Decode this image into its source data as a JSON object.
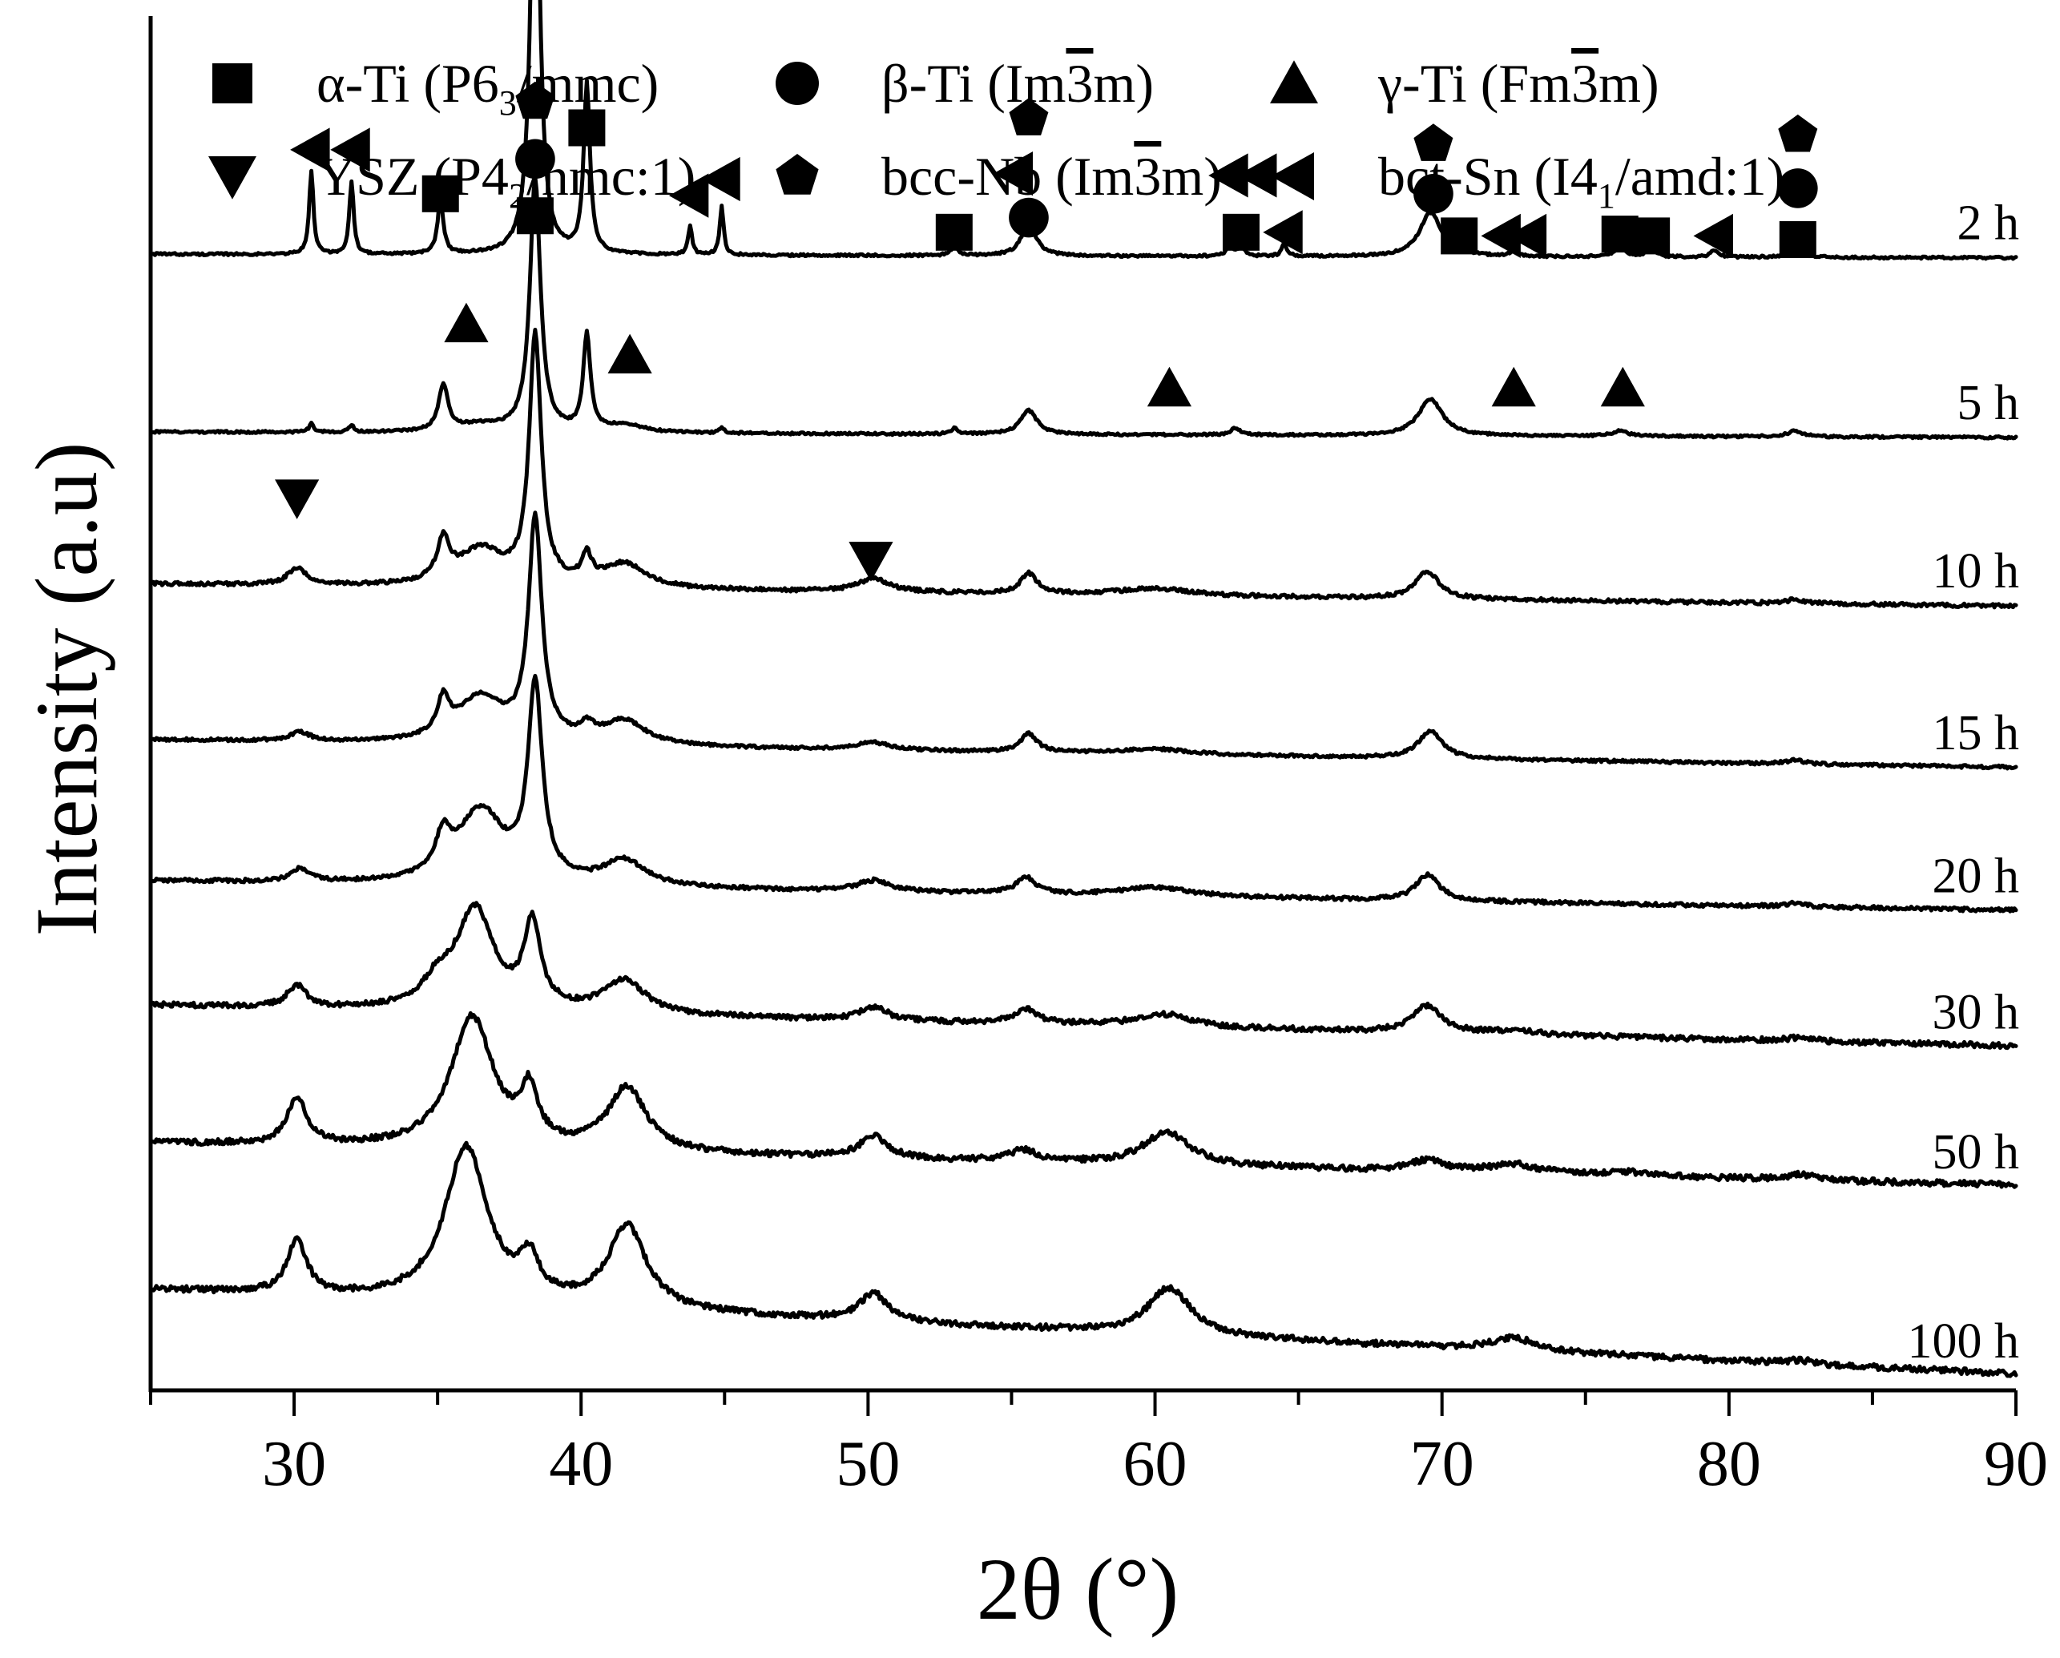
{
  "chart_data": {
    "type": "line",
    "title": "",
    "xlabel": "2θ (°)",
    "ylabel": "Intensity (a.u)",
    "xlim": [
      25,
      90
    ],
    "ylim": [
      0,
      7.5
    ],
    "x_ticks": [
      30,
      40,
      50,
      60,
      70,
      80,
      90
    ],
    "grid": false,
    "legend_position": "top",
    "legend": [
      {
        "symbol": "square",
        "phase": "α-Ti",
        "open": " (P6",
        "sub": "3",
        "close": "/mmc)"
      },
      {
        "symbol": "circle",
        "phase": "β-Ti",
        "open": "  (Im",
        "over": "3",
        "close": "m)"
      },
      {
        "symbol": "triangle-up",
        "phase": "γ-Ti",
        "open": " (Fm",
        "over": "3",
        "close": "m)"
      },
      {
        "symbol": "triangle-down",
        "phase": "YSZ",
        "open": " (P4",
        "sub": "2",
        "close": "/nmc:1)"
      },
      {
        "symbol": "pentagon",
        "phase": "bcc-Nb",
        "open": " (Im",
        "over": "3",
        "close": "m)"
      },
      {
        "symbol": "triangle-left",
        "phase": "bct-Sn",
        "open": " (I4",
        "sub": "1",
        "close": "/amd:1)"
      }
    ],
    "series": [
      {
        "name": "2 h",
        "offset": 6.2,
        "tail": -0.02,
        "noise": 0.006,
        "bumps": [
          [
            30.6,
            0.45,
            0.09
          ],
          [
            32.0,
            0.4,
            0.09
          ],
          [
            35.1,
            0.3,
            0.12
          ],
          [
            38.4,
            2.65,
            0.18
          ],
          [
            40.2,
            0.92,
            0.13
          ],
          [
            43.8,
            0.16,
            0.08
          ],
          [
            44.9,
            0.27,
            0.08
          ],
          [
            53.0,
            0.05,
            0.15
          ],
          [
            55.6,
            0.18,
            0.3
          ],
          [
            62.6,
            0.07,
            0.12
          ],
          [
            63.0,
            0.06,
            0.12
          ],
          [
            64.5,
            0.07,
            0.1
          ],
          [
            69.6,
            0.24,
            0.45
          ],
          [
            70.6,
            0.05,
            0.18
          ],
          [
            72.5,
            0.03,
            0.15
          ],
          [
            76.2,
            0.05,
            0.25
          ],
          [
            77.3,
            0.04,
            0.2
          ],
          [
            79.5,
            0.04,
            0.15
          ],
          [
            82.3,
            0.04,
            0.3
          ]
        ]
      },
      {
        "name": "5 h",
        "offset": 5.23,
        "tail": -0.03,
        "noise": 0.006,
        "bumps": [
          [
            30.6,
            0.05,
            0.09
          ],
          [
            32.0,
            0.04,
            0.09
          ],
          [
            35.2,
            0.25,
            0.2
          ],
          [
            36.5,
            0.04,
            1.0
          ],
          [
            38.4,
            1.38,
            0.22
          ],
          [
            40.2,
            0.52,
            0.15
          ],
          [
            41.5,
            0.04,
            0.8
          ],
          [
            44.9,
            0.03,
            0.1
          ],
          [
            53.0,
            0.03,
            0.15
          ],
          [
            55.6,
            0.13,
            0.35
          ],
          [
            62.8,
            0.04,
            0.2
          ],
          [
            69.6,
            0.2,
            0.5
          ],
          [
            76.2,
            0.03,
            0.3
          ],
          [
            82.3,
            0.03,
            0.35
          ]
        ]
      },
      {
        "name": "10 h",
        "offset": 4.4,
        "tail": -0.12,
        "noise": 0.01,
        "bumps": [
          [
            30.1,
            0.09,
            0.4
          ],
          [
            35.2,
            0.22,
            0.25
          ],
          [
            36.5,
            0.2,
            1.0
          ],
          [
            38.4,
            1.35,
            0.25
          ],
          [
            40.2,
            0.14,
            0.2
          ],
          [
            41.5,
            0.13,
            0.9
          ],
          [
            50.2,
            0.07,
            0.7
          ],
          [
            55.6,
            0.11,
            0.35
          ],
          [
            60.0,
            0.04,
            1.5
          ],
          [
            69.5,
            0.15,
            0.5
          ],
          [
            82.3,
            0.02,
            0.4
          ]
        ]
      },
      {
        "name": "15 h",
        "offset": 3.55,
        "tail": -0.15,
        "noise": 0.008,
        "bumps": [
          [
            30.2,
            0.05,
            0.4
          ],
          [
            35.2,
            0.19,
            0.25
          ],
          [
            36.5,
            0.25,
            1.0
          ],
          [
            38.4,
            1.2,
            0.28
          ],
          [
            40.2,
            0.07,
            0.3
          ],
          [
            41.5,
            0.13,
            0.9
          ],
          [
            50.2,
            0.04,
            0.7
          ],
          [
            55.6,
            0.1,
            0.35
          ],
          [
            60.0,
            0.03,
            1.5
          ],
          [
            69.6,
            0.15,
            0.5
          ],
          [
            82.3,
            0.02,
            0.4
          ]
        ]
      },
      {
        "name": "20 h",
        "offset": 2.78,
        "tail": -0.16,
        "noise": 0.01,
        "bumps": [
          [
            30.2,
            0.07,
            0.4
          ],
          [
            35.2,
            0.2,
            0.3
          ],
          [
            36.5,
            0.4,
            1.0
          ],
          [
            38.4,
            1.05,
            0.3
          ],
          [
            41.5,
            0.14,
            0.9
          ],
          [
            50.2,
            0.06,
            0.7
          ],
          [
            55.5,
            0.09,
            0.4
          ],
          [
            60.0,
            0.05,
            1.5
          ],
          [
            69.5,
            0.14,
            0.5
          ],
          [
            82.3,
            0.02,
            0.4
          ]
        ]
      },
      {
        "name": "30 h",
        "offset": 2.1,
        "tail": -0.22,
        "noise": 0.014,
        "bumps": [
          [
            30.1,
            0.12,
            0.4
          ],
          [
            35.0,
            0.12,
            0.6
          ],
          [
            36.3,
            0.55,
            0.8
          ],
          [
            38.3,
            0.45,
            0.35
          ],
          [
            41.5,
            0.18,
            0.9
          ],
          [
            50.2,
            0.07,
            0.6
          ],
          [
            55.5,
            0.08,
            0.5
          ],
          [
            60.3,
            0.07,
            1.2
          ],
          [
            69.5,
            0.15,
            0.6
          ],
          [
            72.5,
            0.02,
            1.0
          ],
          [
            82.5,
            0.02,
            0.5
          ]
        ]
      },
      {
        "name": "50 h",
        "offset": 1.35,
        "tail": -0.23,
        "noise": 0.016,
        "bumps": [
          [
            30.1,
            0.26,
            0.4
          ],
          [
            36.2,
            0.72,
            0.9
          ],
          [
            38.2,
            0.28,
            0.35
          ],
          [
            41.6,
            0.35,
            0.8
          ],
          [
            50.2,
            0.12,
            0.6
          ],
          [
            55.4,
            0.06,
            0.6
          ],
          [
            60.4,
            0.18,
            1.0
          ],
          [
            69.5,
            0.06,
            0.7
          ],
          [
            72.5,
            0.05,
            1.0
          ],
          [
            76.5,
            0.02,
            1.0
          ],
          [
            82.5,
            0.03,
            0.6
          ]
        ]
      },
      {
        "name": "100 h",
        "offset": 0.55,
        "tail": -0.46,
        "noise": 0.016,
        "bumps": [
          [
            30.1,
            0.3,
            0.4
          ],
          [
            36.0,
            0.85,
            0.9
          ],
          [
            38.2,
            0.2,
            0.4
          ],
          [
            41.6,
            0.45,
            0.8
          ],
          [
            50.2,
            0.15,
            0.6
          ],
          [
            60.5,
            0.26,
            0.9
          ],
          [
            72.5,
            0.07,
            1.0
          ],
          [
            82.5,
            0.02,
            0.6
          ]
        ]
      }
    ],
    "annotations": [
      {
        "symbol": "pentagon",
        "x": 38.4,
        "y": 7.03
      },
      {
        "symbol": "circle",
        "x": 38.4,
        "y": 6.72
      },
      {
        "symbol": "square",
        "x": 38.4,
        "y": 6.41
      },
      {
        "symbol": "triangle-left",
        "x": 30.6,
        "y": 6.77
      },
      {
        "symbol": "triangle-left",
        "x": 32.0,
        "y": 6.77
      },
      {
        "symbol": "square",
        "x": 35.1,
        "y": 6.53
      },
      {
        "symbol": "square",
        "x": 40.2,
        "y": 6.89
      },
      {
        "symbol": "triangle-left",
        "x": 43.8,
        "y": 6.52
      },
      {
        "symbol": "triangle-left",
        "x": 44.9,
        "y": 6.61
      },
      {
        "symbol": "square",
        "x": 53.0,
        "y": 6.32
      },
      {
        "symbol": "pentagon",
        "x": 55.6,
        "y": 6.94
      },
      {
        "symbol": "triangle-left",
        "x": 55.1,
        "y": 6.64
      },
      {
        "symbol": "circle",
        "x": 55.6,
        "y": 6.4
      },
      {
        "symbol": "triangle-left",
        "x": 62.6,
        "y": 6.63
      },
      {
        "symbol": "triangle-left",
        "x": 63.6,
        "y": 6.63
      },
      {
        "symbol": "square",
        "x": 63.0,
        "y": 6.32
      },
      {
        "symbol": "triangle-left",
        "x": 64.5,
        "y": 6.32
      },
      {
        "symbol": "pentagon",
        "x": 69.7,
        "y": 6.8
      },
      {
        "symbol": "circle",
        "x": 69.7,
        "y": 6.53
      },
      {
        "symbol": "square",
        "x": 70.6,
        "y": 6.3
      },
      {
        "symbol": "triangle-left",
        "x": 72.1,
        "y": 6.3
      },
      {
        "symbol": "triangle-left",
        "x": 73.0,
        "y": 6.3
      },
      {
        "symbol": "square",
        "x": 76.2,
        "y": 6.31
      },
      {
        "symbol": "square",
        "x": 77.3,
        "y": 6.3
      },
      {
        "symbol": "triangle-left",
        "x": 79.5,
        "y": 6.3
      },
      {
        "symbol": "pentagon",
        "x": 82.4,
        "y": 6.85
      },
      {
        "symbol": "circle",
        "x": 82.4,
        "y": 6.56
      },
      {
        "symbol": "square",
        "x": 82.4,
        "y": 6.28
      },
      {
        "symbol": "triangle-up",
        "x": 36.0,
        "y": 5.82
      },
      {
        "symbol": "triangle-up",
        "x": 41.7,
        "y": 5.65
      },
      {
        "symbol": "triangle-up",
        "x": 60.5,
        "y": 5.47
      },
      {
        "symbol": "triangle-up",
        "x": 72.5,
        "y": 5.47
      },
      {
        "symbol": "triangle-up",
        "x": 76.3,
        "y": 5.47
      },
      {
        "symbol": "triangle-down",
        "x": 30.1,
        "y": 4.87
      },
      {
        "symbol": "triangle-down",
        "x": 50.1,
        "y": 4.53
      }
    ]
  }
}
